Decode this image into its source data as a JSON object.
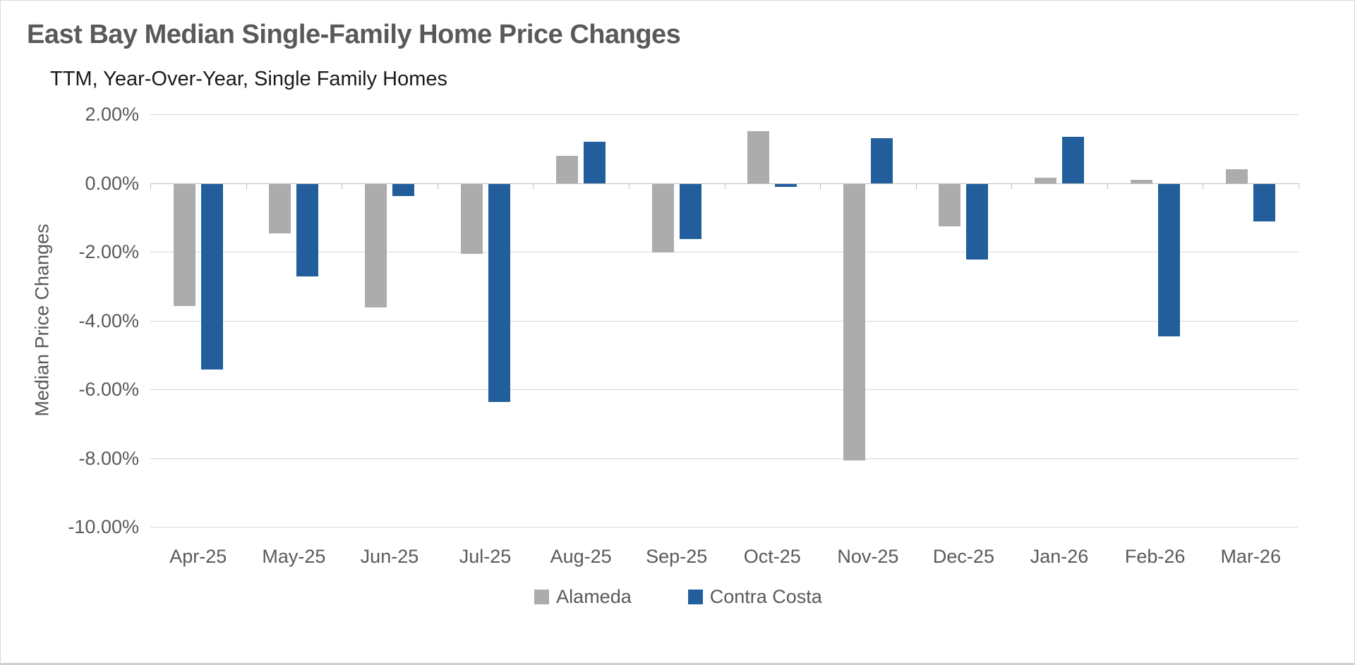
{
  "chart_data": {
    "type": "bar",
    "title": "East Bay Median Single-Family Home Price Changes",
    "subtitle": "TTM, Year-Over-Year, Single Family Homes",
    "ylabel": "Median Price Changes",
    "categories": [
      "Apr-25",
      "May-25",
      "Jun-25",
      "Jul-25",
      "Aug-25",
      "Sep-25",
      "Oct-25",
      "Nov-25",
      "Dec-25",
      "Jan-26",
      "Feb-26",
      "Mar-26"
    ],
    "series": [
      {
        "name": "Alameda",
        "color": "#acacac",
        "values": [
          -3.55,
          -1.45,
          -3.6,
          -2.05,
          0.8,
          -2.0,
          1.5,
          -8.05,
          -1.25,
          0.15,
          0.1,
          0.4
        ]
      },
      {
        "name": "Contra Costa",
        "color": "#215e9b",
        "values": [
          -5.4,
          -2.7,
          -0.35,
          -6.35,
          1.2,
          -1.6,
          -0.1,
          1.3,
          -2.2,
          1.35,
          -4.45,
          -1.1
        ]
      }
    ],
    "ylim": [
      -10,
      2
    ],
    "ytick_step": 2,
    "ytick_labels": [
      "2.00%",
      "0.00%",
      "-2.00%",
      "-4.00%",
      "-6.00%",
      "-8.00%",
      "-10.00%"
    ],
    "grid": true,
    "legend_position": "bottom",
    "colors": {
      "gridline": "#d9d9d9",
      "zero_axis": "#bfbfbf",
      "axis_text": "#595959",
      "title_text": "#595959",
      "subtitle_text": "#1a1a1a"
    }
  }
}
